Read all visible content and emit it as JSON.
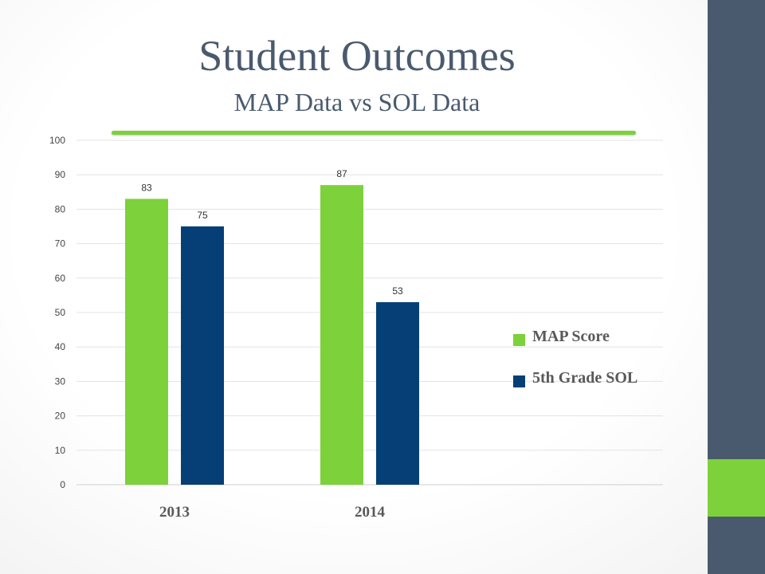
{
  "slide": {
    "title": "Student Outcomes",
    "subtitle": "MAP Data vs SOL Data"
  },
  "colors": {
    "sidebar": "#4a5a6e",
    "accent": "#7dd13a",
    "map_series": "#7dd13a",
    "sol_series": "#063f75",
    "title_text": "#4a5a6e"
  },
  "chart_data": {
    "type": "bar",
    "categories": [
      "2013",
      "2014"
    ],
    "series": [
      {
        "name": "MAP Score",
        "values": [
          83,
          87
        ],
        "color": "#7dd13a"
      },
      {
        "name": "5th Grade SOL",
        "values": [
          75,
          53
        ],
        "color": "#063f75"
      }
    ],
    "yticks": [
      0,
      10,
      20,
      30,
      40,
      50,
      60,
      70,
      80,
      90,
      100
    ],
    "ylim": [
      0,
      100
    ],
    "grid": true,
    "legend": "right",
    "data_labels": true
  }
}
